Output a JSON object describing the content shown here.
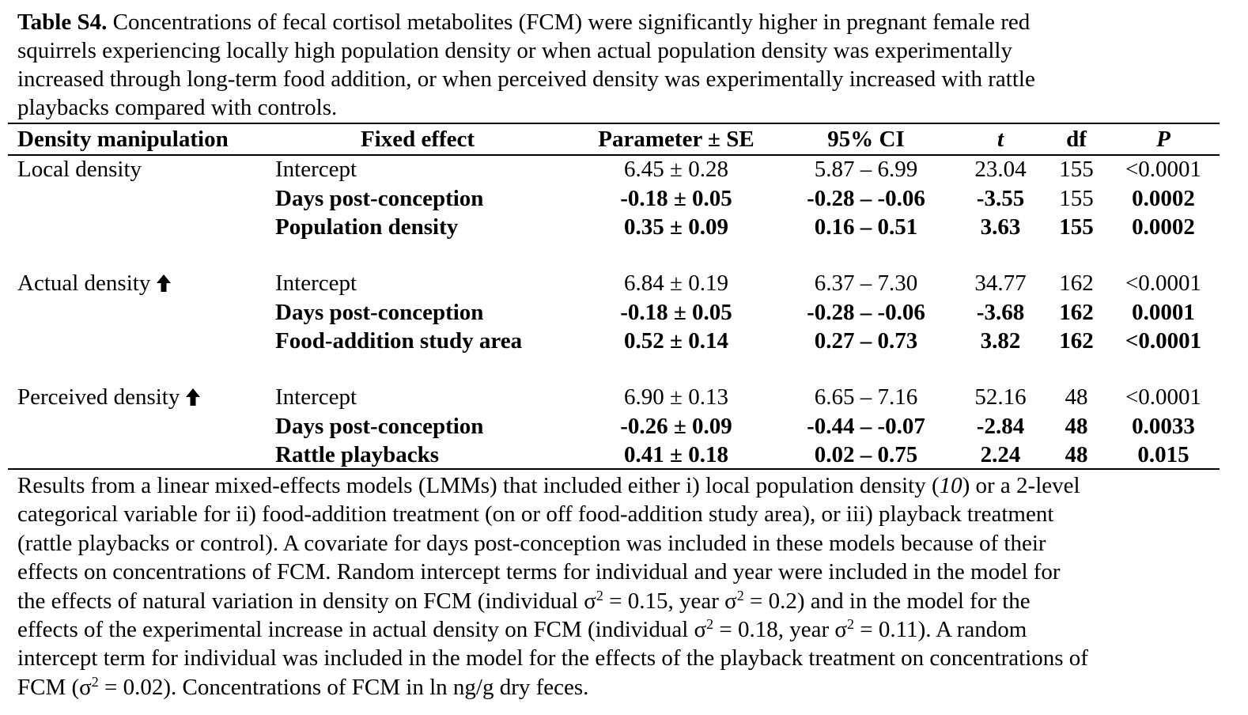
{
  "caption": {
    "label": "Table S4.",
    "lines": [
      " Concentrations of fecal cortisol metabolites (FCM) were significantly higher in pregnant female red",
      "squirrels experiencing locally high population density or when actual population density was experimentally",
      "increased through long-term food addition, or when perceived density was experimentally increased with rattle",
      "playbacks compared with controls."
    ]
  },
  "table": {
    "headers": {
      "manipulation": "Density manipulation",
      "effect": "Fixed effect",
      "param": "Parameter ± SE",
      "ci": "95% CI",
      "t": "t",
      "df": "df",
      "p": "P"
    },
    "groups": [
      {
        "manipulation": "Local density",
        "arrow": "",
        "rows": [
          {
            "effect": "Intercept",
            "param": "6.45 ± 0.28",
            "ci": "5.87 – 6.99",
            "t": "23.04",
            "df": "155",
            "p": "<0.0001",
            "bold": false
          },
          {
            "effect": "Days post-conception",
            "param": "-0.18 ± 0.05",
            "ci": "-0.28 – -0.06",
            "t": "-3.55",
            "df": "155",
            "p": "0.0002",
            "bold": true
          },
          {
            "effect": "Population density",
            "param": "0.35 ± 0.09",
            "ci": "0.16 – 0.51",
            "t": "3.63",
            "df": "155",
            "p": "0.0002",
            "bold": true
          }
        ]
      },
      {
        "manipulation": "Actual density",
        "arrow": "up-arrow-icon",
        "rows": [
          {
            "effect": "Intercept",
            "param": "6.84 ± 0.19",
            "ci": "6.37 – 7.30",
            "t": "34.77",
            "df": "162",
            "p": "<0.0001",
            "bold": false
          },
          {
            "effect": "Days post-conception",
            "param": "-0.18 ± 0.05",
            "ci": "-0.28 – -0.06",
            "t": "-3.68",
            "df": "162",
            "p": "0.0001",
            "bold": true
          },
          {
            "effect": "Food-addition study area",
            "param": "0.52 ± 0.14",
            "ci": "0.27 – 0.73",
            "t": "3.82",
            "df": "162",
            "p": "<0.0001",
            "bold": true
          }
        ]
      },
      {
        "manipulation": "Perceived density",
        "arrow": "up-arrow-icon",
        "rows": [
          {
            "effect": "Intercept",
            "param": "6.90 ± 0.13",
            "ci": "6.65 – 7.16",
            "t": "52.16",
            "df": "48",
            "p": "<0.0001",
            "bold": false
          },
          {
            "effect": "Days post-conception",
            "param": "-0.26 ± 0.09",
            "ci": "-0.44 – -0.07",
            "t": "-2.84",
            "df": "48",
            "p": "0.0033",
            "bold": true
          },
          {
            "effect": "Rattle playbacks",
            "param": "0.41 ± 0.18",
            "ci": "0.02 – 0.75",
            "t": "2.24",
            "df": "48",
            "p": "0.015",
            "bold": true
          }
        ]
      }
    ]
  },
  "footnote": {
    "line1a": "Results from a linear mixed-effects models (LMMs) that included either i) local population density (",
    "line1ref": "10",
    "line1b": ") or a 2-level",
    "line2": "categorical variable for ii) food-addition treatment (on or off food-addition study area), or iii) playback treatment",
    "line3": "(rattle playbacks or control). A covariate for days post-conception was included in these models because of their",
    "line4": "effects on concentrations of FCM. Random intercept terms for individual and year were included in the model for",
    "line5a": "the effects of natural variation in density on FCM (individual σ",
    "line5b": " = 0.15, year σ",
    "line5c": " = 0.2) and in the model for the",
    "line6a": "effects of the experimental increase in actual density on FCM (individual σ",
    "line6b": " = 0.18, year σ",
    "line6c": " = 0.11). A random",
    "line7": "intercept term for individual was included in the model for the effects of the playback treatment on concentrations of",
    "line8a": "FCM (σ",
    "line8b": " = 0.02). Concentrations of FCM in ln ng/g dry feces.",
    "sup": "2"
  }
}
